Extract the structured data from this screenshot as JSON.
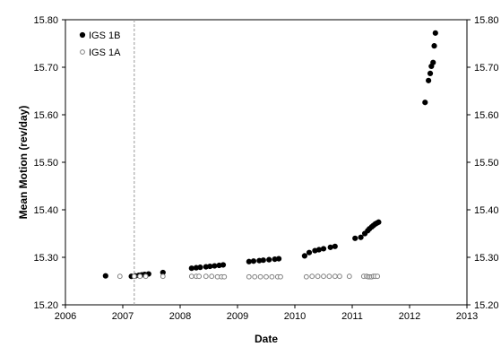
{
  "chart_data": {
    "type": "scatter",
    "xlabel": "Date",
    "ylabel": "Mean Motion (rev/day)",
    "xlim": [
      2006,
      2013
    ],
    "ylim": [
      15.2,
      15.8
    ],
    "x_ticks": [
      "2006",
      "2007",
      "2008",
      "2009",
      "2010",
      "2011",
      "2012",
      "2013"
    ],
    "y_ticks": [
      "15.20",
      "15.30",
      "15.40",
      "15.50",
      "15.60",
      "15.70",
      "15.80"
    ],
    "y_ticks_right": [
      "15.20",
      "15.30",
      "15.40",
      "15.50",
      "15.60",
      "15.70",
      "15.80"
    ],
    "grid": false,
    "legend_position": "top-left",
    "reference_line_x": 2007.2,
    "series": [
      {
        "name": "IGS 1B",
        "marker": "filled-circle",
        "color": "#000000",
        "points": [
          [
            2006.7,
            15.261
          ],
          [
            2007.15,
            15.26
          ],
          [
            2007.22,
            15.261
          ],
          [
            2007.28,
            15.262
          ],
          [
            2007.33,
            15.263
          ],
          [
            2007.38,
            15.264
          ],
          [
            2007.45,
            15.265
          ],
          [
            2007.7,
            15.268
          ],
          [
            2008.2,
            15.277
          ],
          [
            2008.28,
            15.278
          ],
          [
            2008.35,
            15.279
          ],
          [
            2008.45,
            15.28
          ],
          [
            2008.52,
            15.281
          ],
          [
            2008.6,
            15.282
          ],
          [
            2008.68,
            15.283
          ],
          [
            2008.75,
            15.284
          ],
          [
            2009.2,
            15.291
          ],
          [
            2009.28,
            15.292
          ],
          [
            2009.38,
            15.293
          ],
          [
            2009.45,
            15.294
          ],
          [
            2009.55,
            15.295
          ],
          [
            2009.65,
            15.296
          ],
          [
            2009.72,
            15.297
          ],
          [
            2010.17,
            15.303
          ],
          [
            2010.25,
            15.31
          ],
          [
            2010.35,
            15.314
          ],
          [
            2010.42,
            15.316
          ],
          [
            2010.5,
            15.318
          ],
          [
            2010.62,
            15.321
          ],
          [
            2010.7,
            15.323
          ],
          [
            2011.05,
            15.34
          ],
          [
            2011.15,
            15.342
          ],
          [
            2011.22,
            15.35
          ],
          [
            2011.27,
            15.356
          ],
          [
            2011.3,
            15.36
          ],
          [
            2011.34,
            15.364
          ],
          [
            2011.37,
            15.367
          ],
          [
            2011.4,
            15.37
          ],
          [
            2011.43,
            15.372
          ],
          [
            2011.46,
            15.374
          ],
          [
            2012.27,
            15.626
          ],
          [
            2012.33,
            15.672
          ],
          [
            2012.36,
            15.687
          ],
          [
            2012.38,
            15.702
          ],
          [
            2012.41,
            15.71
          ],
          [
            2012.43,
            15.745
          ],
          [
            2012.45,
            15.772
          ]
        ]
      },
      {
        "name": "IGS 1A",
        "marker": "open-circle",
        "color": "#808080",
        "points": [
          [
            2006.95,
            15.26
          ],
          [
            2007.2,
            15.26
          ],
          [
            2007.3,
            15.26
          ],
          [
            2007.4,
            15.26
          ],
          [
            2007.7,
            15.26
          ],
          [
            2008.2,
            15.26
          ],
          [
            2008.28,
            15.26
          ],
          [
            2008.33,
            15.26
          ],
          [
            2008.45,
            15.26
          ],
          [
            2008.55,
            15.26
          ],
          [
            2008.65,
            15.259
          ],
          [
            2008.72,
            15.259
          ],
          [
            2008.77,
            15.259
          ],
          [
            2009.2,
            15.259
          ],
          [
            2009.3,
            15.259
          ],
          [
            2009.4,
            15.259
          ],
          [
            2009.5,
            15.259
          ],
          [
            2009.6,
            15.259
          ],
          [
            2009.7,
            15.259
          ],
          [
            2009.75,
            15.259
          ],
          [
            2010.2,
            15.259
          ],
          [
            2010.3,
            15.26
          ],
          [
            2010.4,
            15.26
          ],
          [
            2010.5,
            15.26
          ],
          [
            2010.6,
            15.26
          ],
          [
            2010.7,
            15.26
          ],
          [
            2010.78,
            15.26
          ],
          [
            2010.95,
            15.26
          ],
          [
            2011.2,
            15.26
          ],
          [
            2011.25,
            15.26
          ],
          [
            2011.28,
            15.259
          ],
          [
            2011.31,
            15.259
          ],
          [
            2011.34,
            15.259
          ],
          [
            2011.37,
            15.26
          ],
          [
            2011.4,
            15.26
          ],
          [
            2011.44,
            15.26
          ]
        ]
      }
    ]
  }
}
